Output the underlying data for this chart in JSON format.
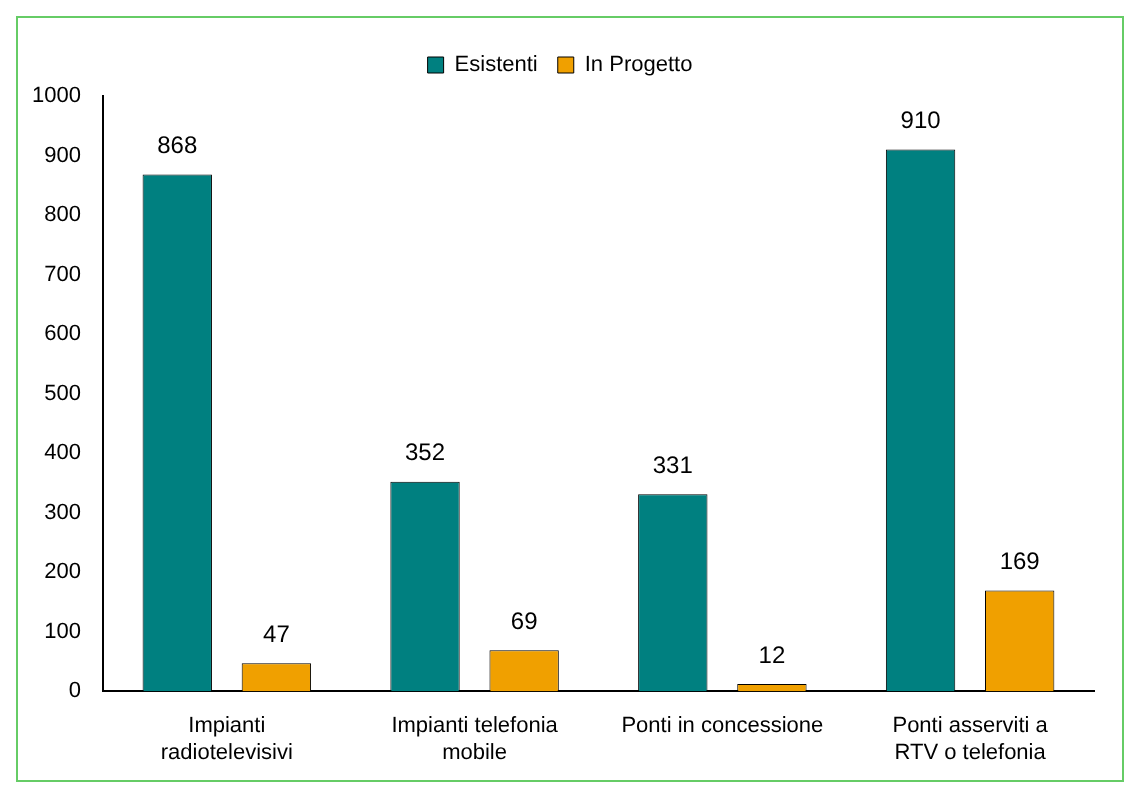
{
  "chart_data": {
    "type": "bar",
    "categories": [
      "Impianti radiotelevisivi",
      "Impianti telefonia mobile",
      "Ponti in concessione",
      "Ponti asserviti a RTV o telefonia"
    ],
    "series": [
      {
        "name": "Esistenti",
        "color": "#008080",
        "values": [
          868,
          352,
          331,
          910
        ]
      },
      {
        "name": "In Progetto",
        "color": "#f0a000",
        "values": [
          47,
          69,
          12,
          169
        ]
      }
    ],
    "ylim": [
      0,
      1000
    ],
    "yticks": [
      0,
      100,
      200,
      300,
      400,
      500,
      600,
      700,
      800,
      900,
      1000
    ],
    "grid": false,
    "legend": "top",
    "data_labels": true
  }
}
